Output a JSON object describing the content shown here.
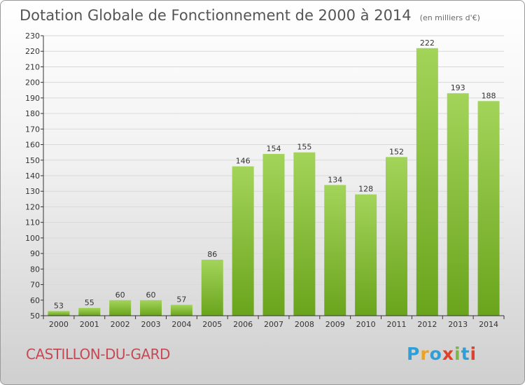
{
  "header": {
    "title": "Dotation Globale de Fonctionnement de 2000 à 2014",
    "unit_note": "(en milliers d'€)"
  },
  "footer": {
    "commune": "CASTILLON-DU-GARD",
    "brand": [
      "P",
      "r",
      "o",
      "x",
      "i",
      "t",
      "i"
    ]
  },
  "colors": {
    "bar_light": "#a3d45a",
    "bar_dark": "#6aa41c",
    "grid": "#d9d9d9",
    "axis": "#333333",
    "commune": "#c44a55"
  },
  "chart_data": {
    "type": "bar",
    "title": "Dotation Globale de Fonctionnement de 2000 à 2014",
    "subtitle": "(en milliers d'€)",
    "categories": [
      "2000",
      "2001",
      "2002",
      "2003",
      "2004",
      "2005",
      "2006",
      "2007",
      "2008",
      "2009",
      "2010",
      "2011",
      "2012",
      "2013",
      "2014"
    ],
    "values": [
      53,
      55,
      60,
      60,
      57,
      86,
      146,
      154,
      155,
      134,
      128,
      152,
      222,
      193,
      188
    ],
    "ylim": [
      50,
      230
    ],
    "ytick_step": 10,
    "grid": true,
    "legend": "none"
  }
}
